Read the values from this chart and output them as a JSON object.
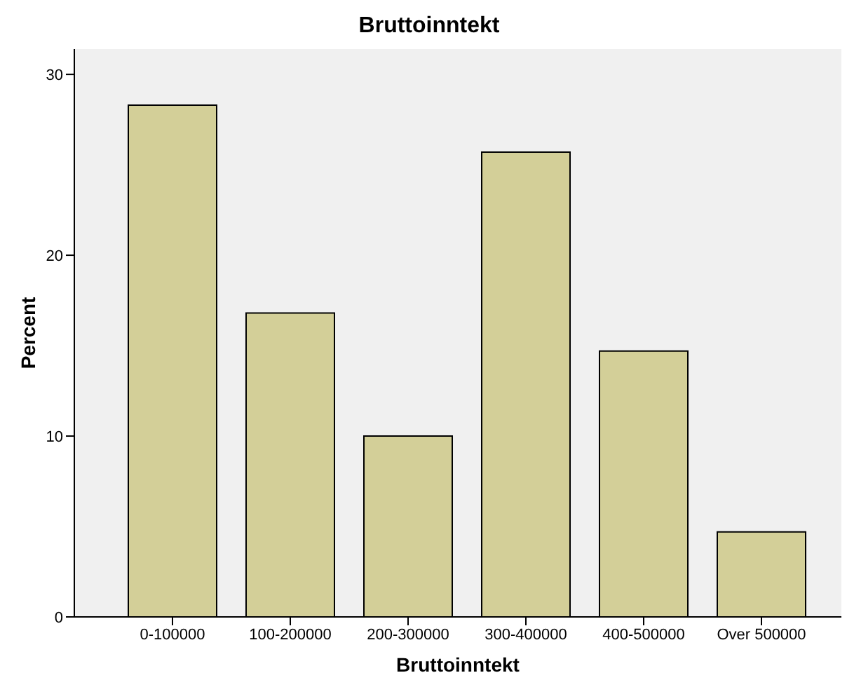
{
  "chart_data": {
    "type": "bar",
    "title": "Bruttoinntekt",
    "xlabel": "Bruttoinntekt",
    "ylabel": "Percent",
    "categories": [
      "0-100000",
      "100-200000",
      "200-300000",
      "300-400000",
      "400-500000",
      "Over 500000"
    ],
    "values": [
      28.3,
      16.8,
      10.0,
      25.7,
      14.7,
      4.7
    ],
    "color": "#d3cf98",
    "ylim": [
      0,
      31.4
    ],
    "yticks": [
      0,
      10,
      20,
      30
    ],
    "grid": false
  }
}
